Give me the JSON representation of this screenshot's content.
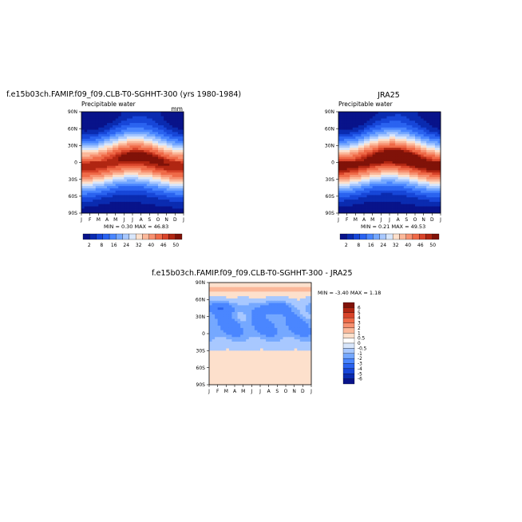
{
  "chart_data": [
    {
      "type": "heatmap",
      "title": "f.e15b03ch.FAMIP.f09_f09.CLB-T0-SGHHT-300 (yrs 1980-1984)",
      "subtitle": "Precipitable water",
      "units": "mm",
      "x_ticks": [
        "J",
        "F",
        "M",
        "A",
        "M",
        "J",
        "J",
        "A",
        "S",
        "O",
        "N",
        "D",
        "J"
      ],
      "y_ticks": [
        "90N",
        "60N",
        "30N",
        "0",
        "30S",
        "60S",
        "90S"
      ],
      "stats": "MIN =    0.30 MAX =   46.83",
      "colorbar_labels": [
        "2",
        "8",
        "16",
        "24",
        "32",
        "40",
        "46",
        "50"
      ],
      "min": 0.3,
      "max": 46.83
    },
    {
      "type": "heatmap",
      "title": "JRA25",
      "subtitle": "Precipitable water",
      "x_ticks": [
        "J",
        "F",
        "M",
        "A",
        "M",
        "J",
        "J",
        "A",
        "S",
        "O",
        "N",
        "D",
        "J"
      ],
      "y_ticks": [
        "90N",
        "60N",
        "30N",
        "0",
        "30S",
        "60S",
        "90S"
      ],
      "stats": "MIN =    0.21 MAX =   49.53",
      "colorbar_labels": [
        "2",
        "8",
        "16",
        "24",
        "32",
        "40",
        "46",
        "50"
      ],
      "min": 0.21,
      "max": 49.53
    },
    {
      "type": "heatmap",
      "title": "f.e15b03ch.FAMIP.f09_f09.CLB-T0-SGHHT-300 - JRA25",
      "x_ticks": [
        "J",
        "F",
        "M",
        "A",
        "M",
        "J",
        "J",
        "A",
        "S",
        "O",
        "N",
        "D",
        "J"
      ],
      "y_ticks": [
        "90N",
        "60N",
        "30N",
        "0",
        "30S",
        "60S",
        "90S"
      ],
      "stats": "MIN =   -3.40 MAX =    1.18",
      "colorbar_labels": [
        "6",
        "5",
        "4",
        "3",
        "2",
        "1",
        "0.5",
        "0",
        "-0.5",
        "-1",
        "-2",
        "-3",
        "-4",
        "-5",
        "-6"
      ],
      "min": -3.4,
      "max": 1.18
    }
  ],
  "colors": {
    "scale": [
      "#08138a",
      "#0a2bb0",
      "#1746d8",
      "#2a63f0",
      "#4a86ff",
      "#75a8ff",
      "#a8c8ff",
      "#d8e6fb",
      "#fde0cc",
      "#fbb89a",
      "#f79070",
      "#ef6a48",
      "#d8442a",
      "#b02612",
      "#801208"
    ],
    "diff_scale": [
      "#801208",
      "#b02612",
      "#d8442a",
      "#ef6a48",
      "#f79070",
      "#fbb89a",
      "#fde0cc",
      "#ffffff",
      "#d8e6fb",
      "#a8c8ff",
      "#75a8ff",
      "#4a86ff",
      "#2a63f0",
      "#1746d8",
      "#0a2bb0",
      "#08138a"
    ]
  }
}
